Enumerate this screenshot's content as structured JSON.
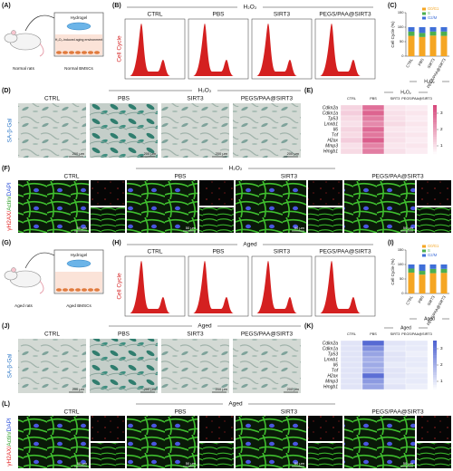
{
  "figure": {
    "normal": {
      "a": {
        "label": "(A)",
        "hydrogel": "Hydrogel",
        "environment": "H₂O₂-induced aging environment",
        "subject": "Normal rats",
        "cells": "Normal BMSCs"
      },
      "b": {
        "label": "(B)",
        "group": "H₂O₂",
        "y_label": "Cell Cycle",
        "columns": [
          "CTRL",
          "PBS",
          "SIRT3",
          "PEGS/PAA@SIRT3"
        ]
      },
      "d": {
        "label": "(D)",
        "group": "H₂O₂",
        "y_label": "SA-β-Gal",
        "columns": [
          "CTRL",
          "PBS",
          "SIRT3",
          "PEGS/PAA@SIRT3"
        ],
        "scale": "200 μm"
      },
      "f": {
        "label": "(F)",
        "group": "H₂O₂",
        "y_label": [
          "γH2AX/",
          "Actin/",
          "DAPI"
        ],
        "columns": [
          "CTRL",
          "PBS",
          "SIRT3",
          "PEGS/PAA@SIRT3"
        ],
        "scale": "50 μm"
      }
    },
    "aged": {
      "a": {
        "label": "(G)",
        "hydrogel": "Hydrogel",
        "subject": "Aged rats",
        "cells": "Aged BMSCs"
      },
      "b": {
        "label": "(H)",
        "group": "Aged",
        "y_label": "Cell Cycle",
        "columns": [
          "CTRL",
          "PBS",
          "SIRT3",
          "PEGS/PAA@SIRT3"
        ]
      },
      "d": {
        "label": "(J)",
        "group": "Aged",
        "y_label": "SA-β-Gal",
        "columns": [
          "CTRL",
          "PBS",
          "SIRT3",
          "PEGS/PAA@SIRT3"
        ],
        "scale": "200 μm"
      },
      "f": {
        "label": "(L)",
        "group": "Aged",
        "y_label": [
          "γH2AX/",
          "Actin/",
          "DAPI"
        ],
        "columns": [
          "CTRL",
          "PBS",
          "SIRT3",
          "PEGS/PAA@SIRT3"
        ],
        "scale": "50 μm"
      }
    }
  },
  "chart_data": [
    {
      "type": "bar",
      "stacked": true,
      "label": "(C)",
      "y_label": "Cell Cycle (%)",
      "group": "H₂O₂",
      "categories": [
        "CTRL",
        "PBS",
        "SIRT3",
        "PEGS/PAA@SIRT3"
      ],
      "ylim": [
        0,
        150
      ],
      "yticks": [
        0,
        50,
        100,
        150
      ],
      "series": [
        {
          "name": "G0/G1",
          "color": "#f5a623",
          "values": [
            70,
            66,
            71,
            70
          ]
        },
        {
          "name": "S",
          "color": "#4caf50",
          "values": [
            15,
            14,
            14,
            15
          ]
        },
        {
          "name": "G2/M",
          "color": "#3f6fd8",
          "values": [
            15,
            20,
            15,
            15
          ]
        }
      ]
    },
    {
      "type": "heatmap",
      "label": "(E)",
      "group": "H₂O₂",
      "color": "#d6457a",
      "rows": [
        "Cdkn2a",
        "Cdkn1a",
        "Tp53",
        "Lmnb1",
        "Il6",
        "Tnf",
        "H2ax",
        "Mmp3",
        "Hmgb1"
      ],
      "columns": [
        "CTRL",
        "PBS",
        "SIRT3",
        "PEGS/PAA@SIRT3"
      ],
      "vlim": [
        0.5,
        3.5
      ],
      "ticks": [
        1,
        2,
        3
      ],
      "values": [
        [
          1.2,
          2.8,
          0.9,
          0.8
        ],
        [
          1.3,
          3.0,
          1.0,
          0.9
        ],
        [
          1.1,
          2.6,
          1.0,
          0.8
        ],
        [
          1.0,
          2.4,
          1.1,
          0.9
        ],
        [
          1.2,
          2.9,
          0.9,
          0.8
        ],
        [
          1.1,
          2.7,
          1.0,
          0.9
        ],
        [
          1.3,
          3.1,
          1.0,
          0.8
        ],
        [
          1.0,
          2.5,
          0.9,
          0.9
        ],
        [
          1.1,
          2.6,
          1.0,
          0.8
        ]
      ]
    },
    {
      "type": "bar",
      "stacked": true,
      "label": "(I)",
      "y_label": "Cell Cycle (%)",
      "group": "Aged",
      "categories": [
        "CTRL",
        "PBS",
        "SIRT3",
        "PEGS/PAA@SIRT3"
      ],
      "ylim": [
        0,
        150
      ],
      "yticks": [
        0,
        50,
        100,
        150
      ],
      "series": [
        {
          "name": "G0/G1",
          "color": "#f5a623",
          "values": [
            72,
            65,
            70,
            71
          ]
        },
        {
          "name": "S",
          "color": "#4caf50",
          "values": [
            14,
            13,
            15,
            14
          ]
        },
        {
          "name": "G2/M",
          "color": "#3f6fd8",
          "values": [
            14,
            22,
            15,
            15
          ]
        }
      ]
    },
    {
      "type": "heatmap",
      "label": "(K)",
      "group": "Aged",
      "color": "#4a5fd0",
      "rows": [
        "Cdkn2a",
        "Cdkn1a",
        "Tp53",
        "Lmnb1",
        "Il6",
        "Tnf",
        "H2ax",
        "Mmp3",
        "Hmgb1"
      ],
      "columns": [
        "CTRL",
        "PBS",
        "SIRT3",
        "PEGS/PAA@SIRT3"
      ],
      "vlim": [
        0.5,
        3.5
      ],
      "ticks": [
        1,
        2,
        3
      ],
      "values": [
        [
          1.0,
          3.3,
          1.0,
          0.9
        ],
        [
          1.0,
          2.6,
          0.9,
          0.9
        ],
        [
          1.0,
          2.2,
          1.0,
          0.8
        ],
        [
          1.0,
          2.0,
          1.0,
          0.9
        ],
        [
          1.0,
          2.1,
          0.9,
          0.9
        ],
        [
          1.0,
          2.0,
          1.0,
          0.8
        ],
        [
          1.0,
          3.2,
          1.0,
          0.9
        ],
        [
          1.0,
          2.4,
          0.9,
          0.9
        ],
        [
          1.0,
          2.2,
          1.0,
          0.8
        ]
      ]
    }
  ]
}
